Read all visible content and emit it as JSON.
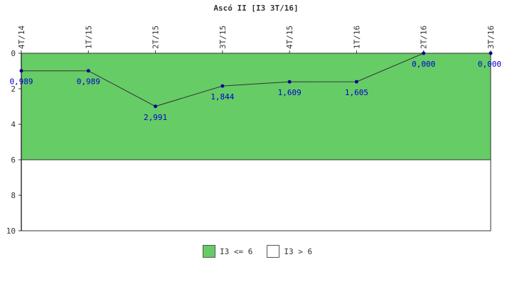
{
  "chart_data": {
    "type": "line",
    "title": "Ascó II [I3 3T/16]",
    "xlabel": "",
    "ylabel": "",
    "categories": [
      "4T/14",
      "1T/15",
      "2T/15",
      "3T/15",
      "4T/15",
      "1T/16",
      "2T/16",
      "3T/16"
    ],
    "values": [
      0.989,
      0.989,
      2.991,
      1.844,
      1.609,
      1.605,
      0.0,
      0.0
    ],
    "value_labels": [
      "0,989",
      "0,989",
      "2,991",
      "1,844",
      "1,609",
      "1,605",
      "0,000",
      "0,000"
    ],
    "ylim": [
      0,
      10
    ],
    "y_inverted": true,
    "yticks": [
      0,
      2,
      4,
      6,
      8,
      10
    ],
    "threshold": 6,
    "bands": [
      {
        "label": "I3 <= 6",
        "color": "#66cc66",
        "from": 0,
        "to": 6
      },
      {
        "label": "I3 > 6",
        "color": "#ffffff",
        "from": 6,
        "to": 10
      }
    ],
    "legend_position": "bottom",
    "grid": false,
    "colors": {
      "line": "#333333",
      "marker": "#000099",
      "value_label": "#0000cc",
      "axis": "#333333"
    }
  }
}
